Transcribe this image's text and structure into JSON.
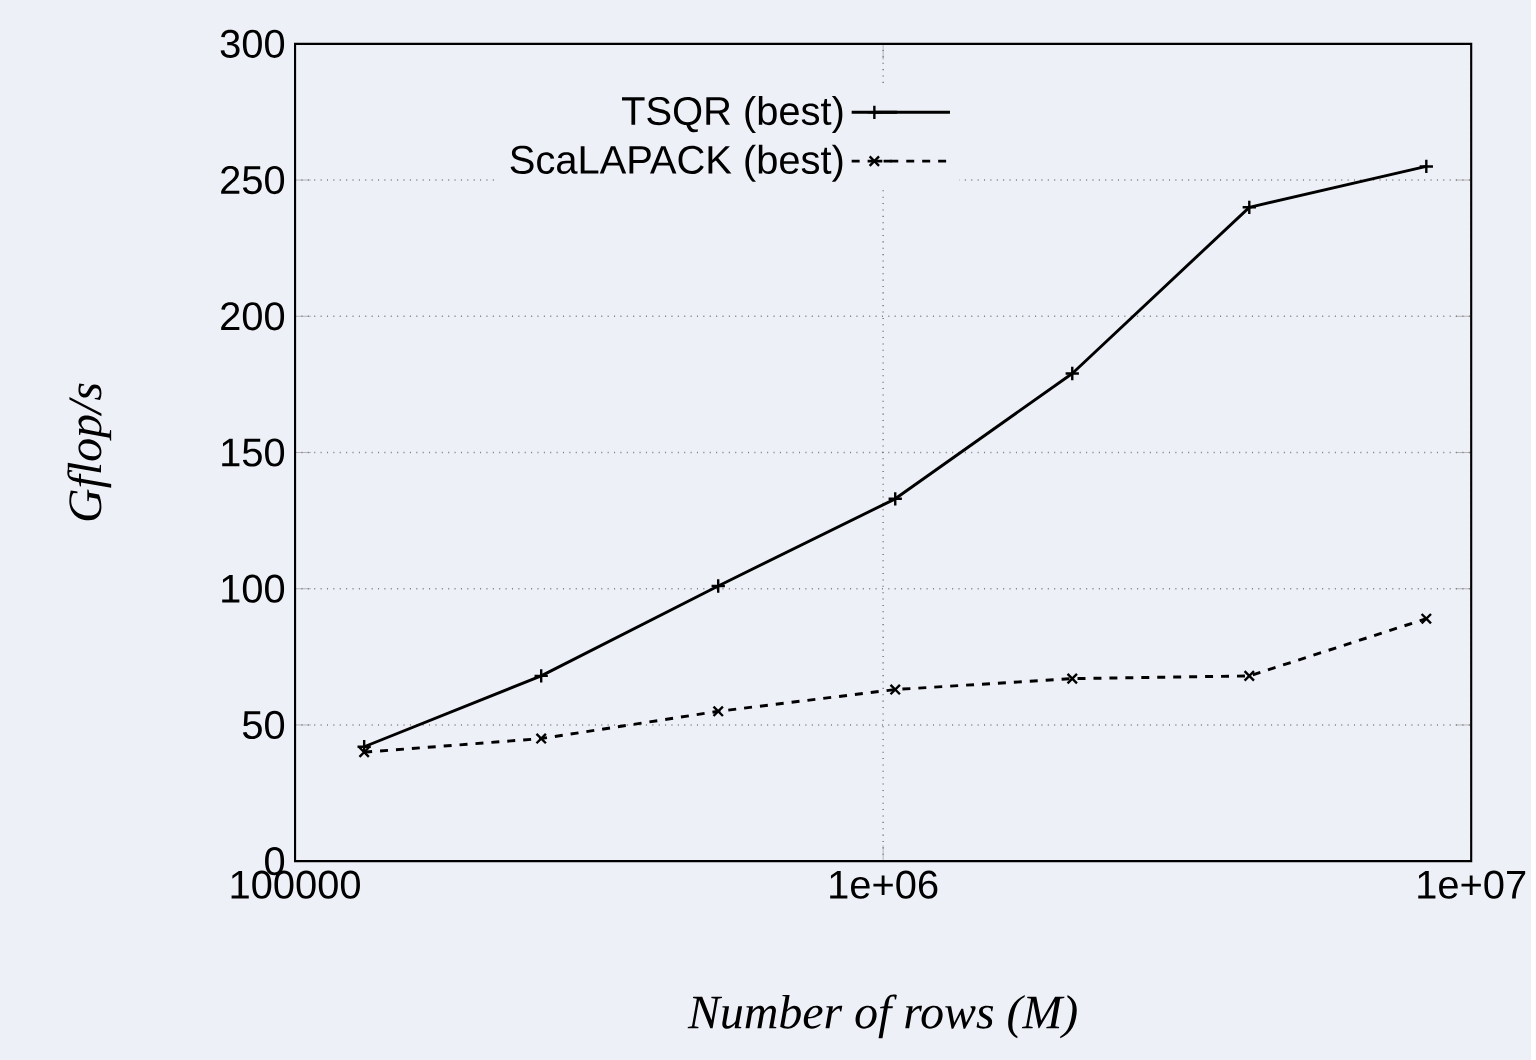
{
  "chart_data": {
    "type": "line",
    "xlabel": "Number of rows (M)",
    "ylabel": "Gflop/s",
    "x": [
      131072,
      262144,
      524288,
      1048576,
      2097152,
      4194304,
      8388608
    ],
    "series": [
      {
        "name": "TSQR (best)",
        "color": "#000000",
        "marker": "cross",
        "line_style": "solid",
        "values": [
          42,
          68,
          101,
          133,
          179,
          240,
          255
        ]
      },
      {
        "name": "ScaLAPACK (best)",
        "color": "#000000",
        "marker": "cross",
        "line_style": "dashed",
        "values": [
          40,
          45,
          55,
          63,
          67,
          68,
          89
        ]
      }
    ],
    "log": "x",
    "xlim": [
      100000,
      10000000
    ],
    "xticks": [
      100000,
      {
        "value": 1000000,
        "label": "1e+06"
      },
      {
        "value": 10000000,
        "label": "1e+07"
      }
    ],
    "ylim": [
      0,
      300
    ],
    "yticks": [
      0,
      50,
      100,
      150,
      200,
      250,
      300
    ],
    "grid": true,
    "legend": "top left"
  }
}
